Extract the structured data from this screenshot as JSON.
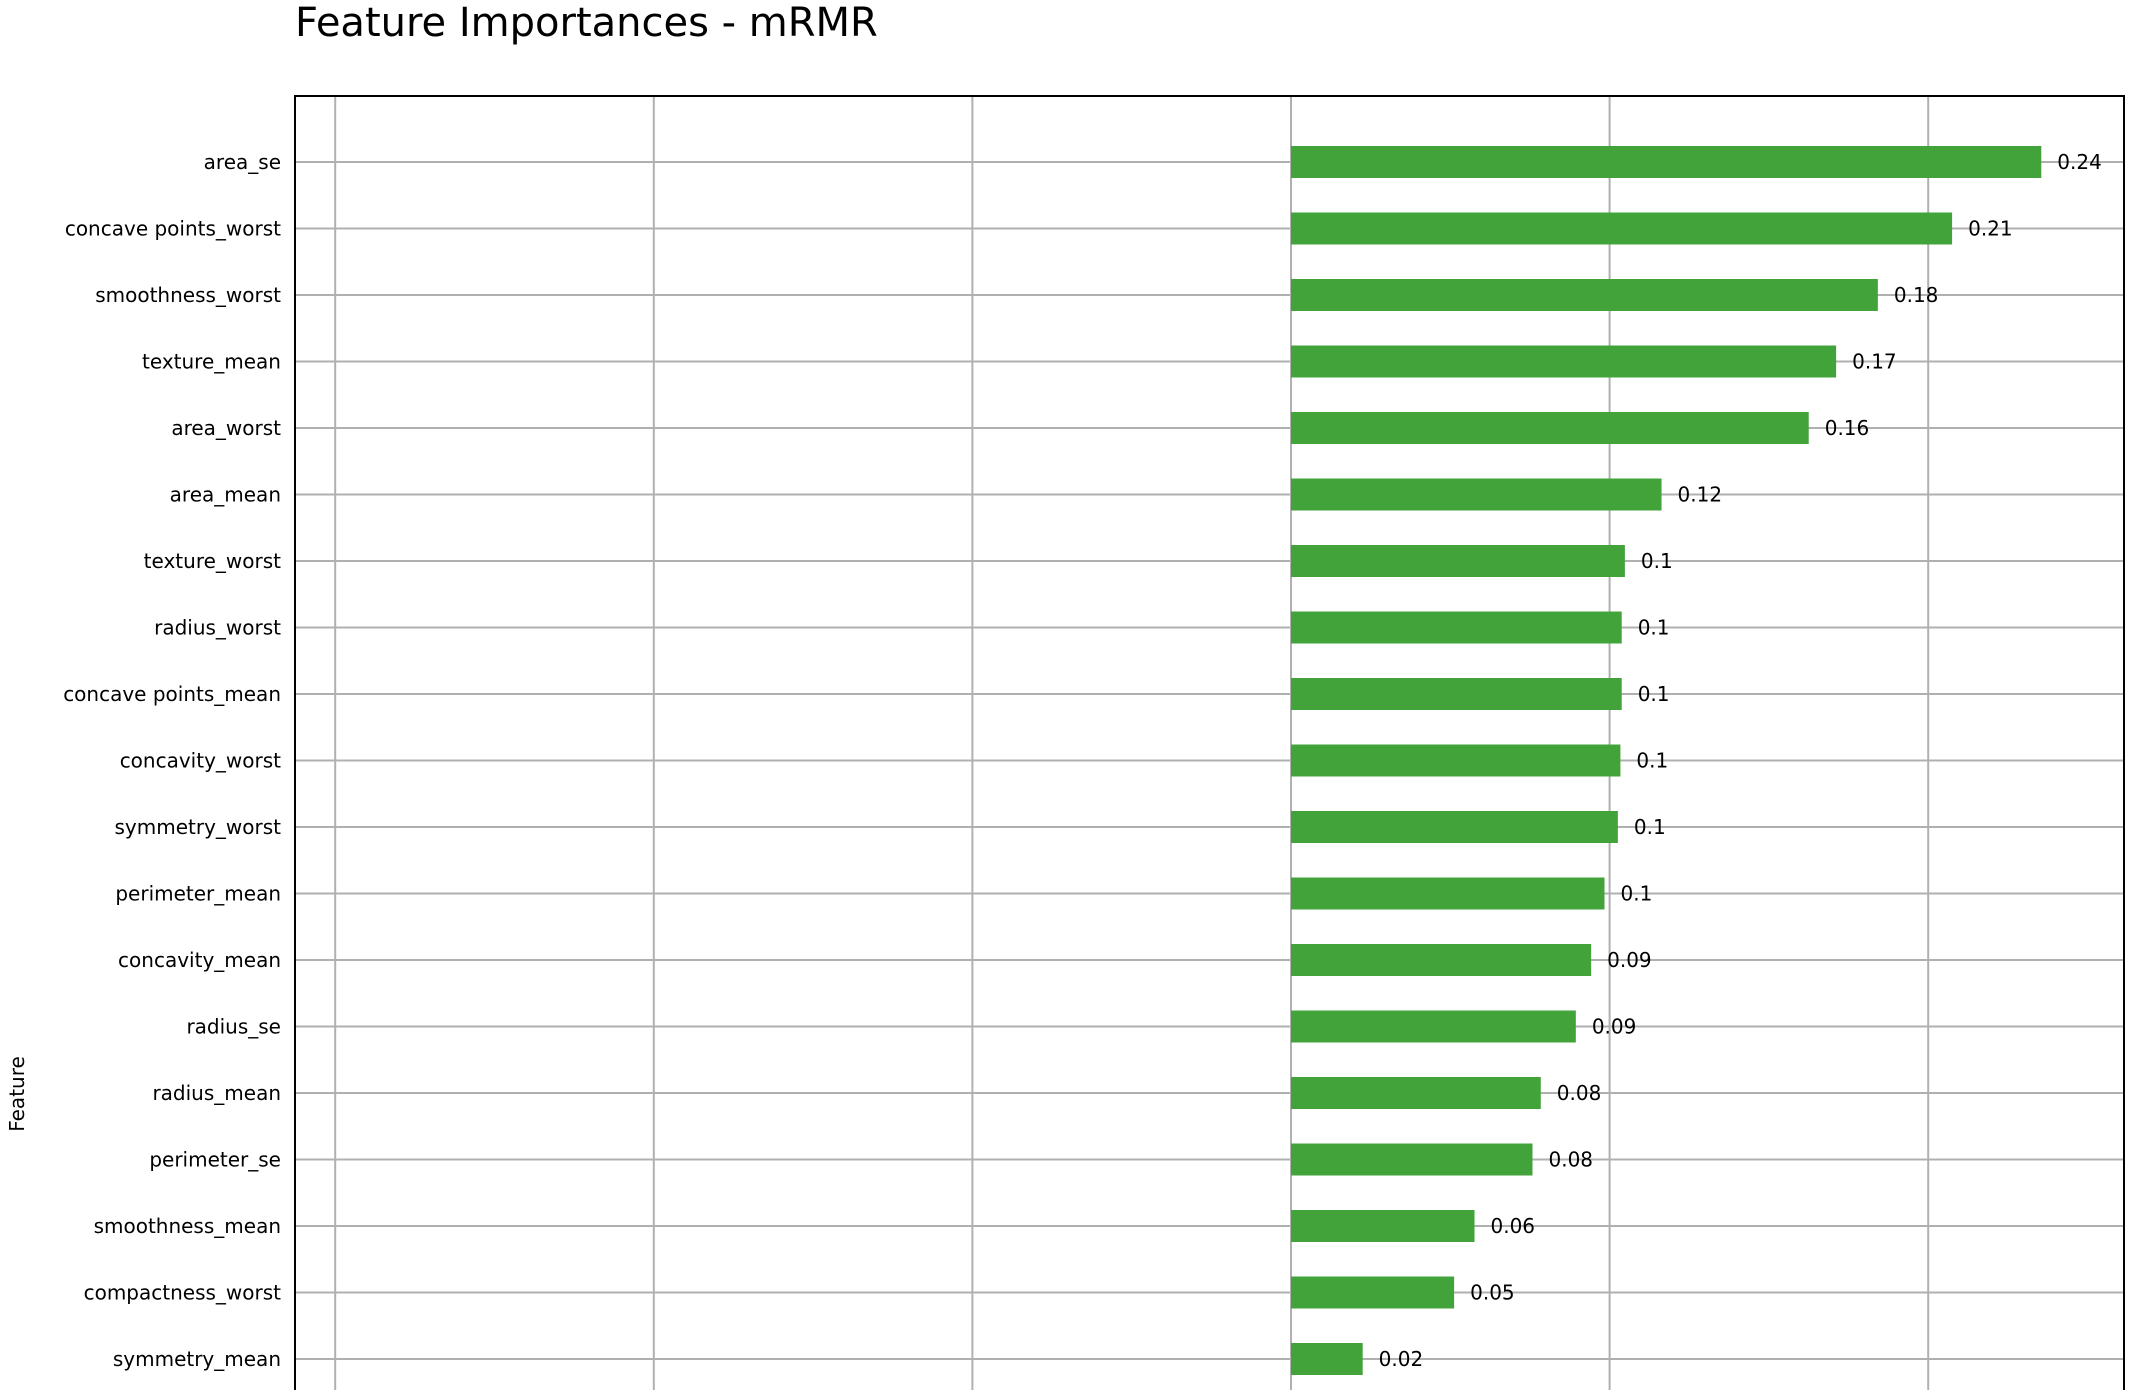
{
  "chart_data": {
    "type": "bar",
    "orientation": "horizontal",
    "title": "Feature Importances - mRMR",
    "xlabel": "",
    "ylabel": "Feature",
    "xlim": [
      -0.3155,
      0.26
    ],
    "grid": true,
    "bar_color": "#43a33b",
    "categories": [
      "area_se",
      "concave points_worst",
      "smoothness_worst",
      "texture_mean",
      "area_worst",
      "area_mean",
      "texture_worst",
      "radius_worst",
      "concave points_mean",
      "concavity_worst",
      "symmetry_worst",
      "perimeter_mean",
      "concavity_mean",
      "radius_se",
      "radius_mean",
      "perimeter_se",
      "smoothness_mean",
      "compactness_worst",
      "symmetry_mean"
    ],
    "values": [
      0.2355,
      0.2075,
      0.1842,
      0.1711,
      0.1625,
      0.1163,
      0.1048,
      0.1038,
      0.1038,
      0.1034,
      0.1026,
      0.0984,
      0.0942,
      0.0894,
      0.0784,
      0.0758,
      0.0576,
      0.0512,
      0.0225
    ],
    "labels": [
      "0.24",
      "0.21",
      "0.18",
      "0.17",
      "0.16",
      "0.12",
      "0.1",
      "0.1",
      "0.1",
      "0.1",
      "0.1",
      "0.1",
      "0.09",
      "0.09",
      "0.08",
      "0.08",
      "0.06",
      "0.05",
      "0.02"
    ]
  }
}
